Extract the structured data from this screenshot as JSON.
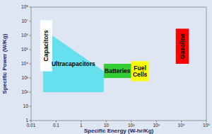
{
  "chart_data": {
    "type": "region",
    "log": true,
    "x_label": "Specific Energy (W-hr/Kg)",
    "y_label": "Specific Power (W/Kg)",
    "xlim": [
      0.01,
      100000
    ],
    "ylim": [
      1,
      100000000
    ],
    "xticks": [
      0.01,
      0.1,
      1,
      10,
      {
        "value": 100,
        "label": "10²"
      },
      {
        "value": 1000,
        "label": "10³"
      },
      {
        "value": 10000,
        "label": "10⁴"
      },
      {
        "value": 100000,
        "label": "10⁵"
      }
    ],
    "yticks": [
      1,
      10,
      {
        "value": 100,
        "label": "10²"
      },
      {
        "value": 1000,
        "label": "10³"
      },
      {
        "value": 10000,
        "label": "10⁴"
      },
      {
        "value": 100000,
        "label": "10⁵"
      },
      {
        "value": 1000000,
        "label": "10⁶"
      },
      {
        "value": 10000000,
        "label": "10⁷"
      },
      {
        "value": 100000000,
        "label": "10⁸"
      }
    ],
    "grid": false,
    "series": [
      {
        "name": "Ultracapacitors",
        "color": "#66e0ee",
        "x": [
          0.03,
          0.03,
          0.07,
          8,
          8
        ],
        "values": [
          100,
          1000000,
          1000000,
          3000,
          100
        ]
      },
      {
        "name": "Capacitors",
        "color": "#ffffff",
        "x": [
          0.023,
          0.023,
          0.07,
          0.07
        ],
        "values": [
          3000,
          12000000,
          12000000,
          3000
        ]
      },
      {
        "name": "Batteries",
        "color": "#33cc33",
        "x": [
          8,
          8,
          100,
          100
        ],
        "values": [
          1000,
          10000,
          10000,
          1000
        ]
      },
      {
        "name": "Fuel Cells",
        "color": "#ffff00",
        "x": [
          100,
          100,
          500,
          500
        ],
        "values": [
          600,
          15000,
          15000,
          600
        ]
      },
      {
        "name": "Gasoline",
        "color": "#ff0000",
        "x": [
          6000,
          6000,
          20000,
          20000
        ],
        "values": [
          10000,
          3000000,
          3000000,
          10000
        ]
      }
    ]
  }
}
